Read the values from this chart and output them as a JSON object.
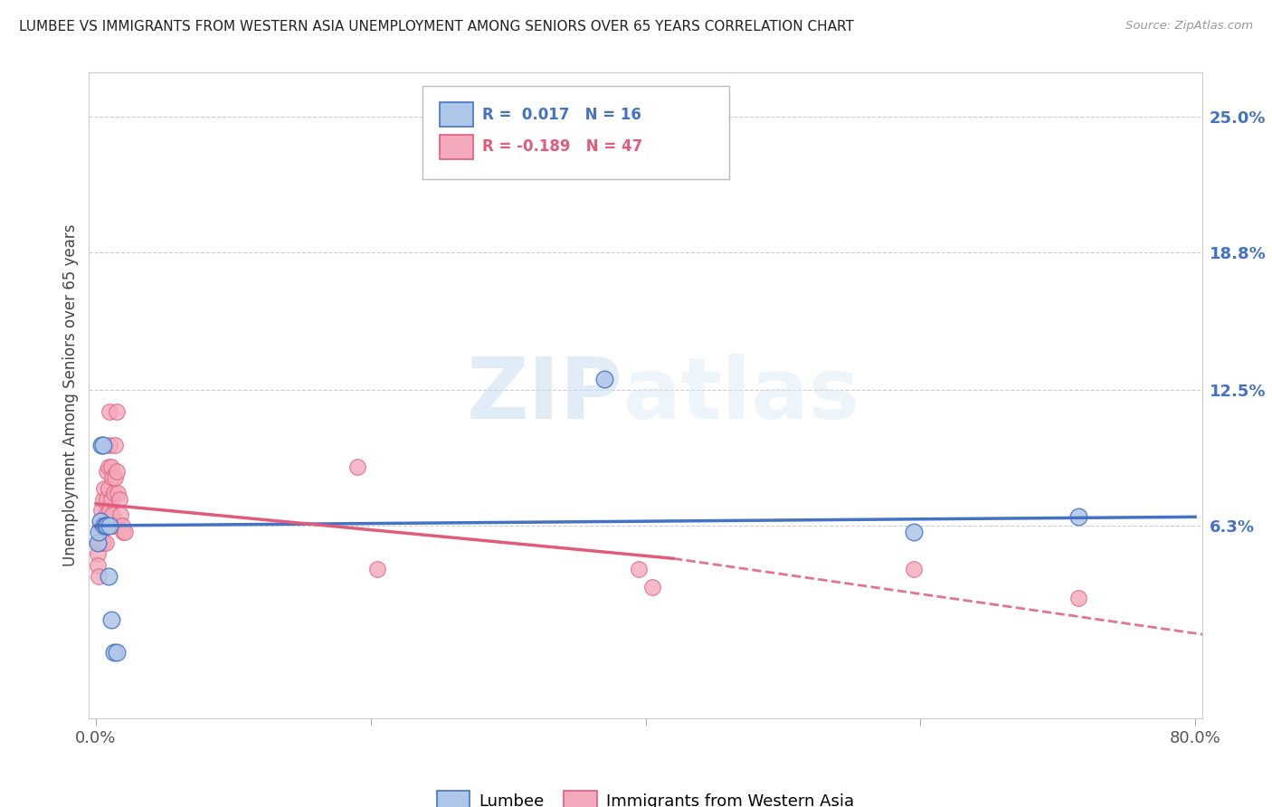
{
  "title": "LUMBEE VS IMMIGRANTS FROM WESTERN ASIA UNEMPLOYMENT AMONG SENIORS OVER 65 YEARS CORRELATION CHART",
  "source": "Source: ZipAtlas.com",
  "ylabel": "Unemployment Among Seniors over 65 years",
  "ytick_labels": [
    "6.3%",
    "12.5%",
    "18.8%",
    "25.0%"
  ],
  "ytick_values": [
    0.063,
    0.125,
    0.188,
    0.25
  ],
  "xlim": [
    -0.005,
    0.805
  ],
  "ylim": [
    -0.025,
    0.27
  ],
  "watermark_zip": "ZIP",
  "watermark_atlas": "atlas",
  "lumbee_color": "#aec6e8",
  "immigrant_color": "#f4a8bc",
  "lumbee_line_color": "#4472C4",
  "immigrant_line_color": "#E05C7A",
  "legend_lumbee": "Lumbee",
  "legend_immigrant": "Immigrants from Western Asia",
  "lumbee_R": 0.017,
  "lumbee_N": 16,
  "immigrant_R": -0.189,
  "immigrant_N": 47,
  "lumbee_trend_y0": 0.063,
  "lumbee_trend_y1": 0.067,
  "immigrant_trend_y0": 0.073,
  "immigrant_trend_y1_solid": 0.048,
  "immigrant_solid_split": 0.42,
  "immigrant_trend_y1_end": 0.012,
  "lumbee_x": [
    0.001,
    0.002,
    0.003,
    0.004,
    0.005,
    0.006,
    0.007,
    0.008,
    0.009,
    0.01,
    0.011,
    0.013,
    0.015,
    0.37,
    0.595,
    0.715
  ],
  "lumbee_y": [
    0.055,
    0.06,
    0.065,
    0.1,
    0.1,
    0.063,
    0.063,
    0.063,
    0.04,
    0.063,
    0.02,
    0.005,
    0.005,
    0.13,
    0.06,
    0.067
  ],
  "immigrant_x": [
    0.001,
    0.001,
    0.002,
    0.002,
    0.003,
    0.003,
    0.004,
    0.004,
    0.005,
    0.005,
    0.005,
    0.006,
    0.006,
    0.007,
    0.007,
    0.007,
    0.008,
    0.008,
    0.009,
    0.009,
    0.009,
    0.01,
    0.01,
    0.01,
    0.011,
    0.011,
    0.012,
    0.012,
    0.013,
    0.013,
    0.014,
    0.014,
    0.015,
    0.015,
    0.016,
    0.016,
    0.017,
    0.018,
    0.019,
    0.02,
    0.021,
    0.19,
    0.205,
    0.395,
    0.405,
    0.595,
    0.715
  ],
  "immigrant_y": [
    0.05,
    0.045,
    0.055,
    0.04,
    0.063,
    0.055,
    0.07,
    0.06,
    0.063,
    0.075,
    0.055,
    0.063,
    0.08,
    0.068,
    0.063,
    0.055,
    0.075,
    0.088,
    0.09,
    0.08,
    0.063,
    0.115,
    0.1,
    0.07,
    0.09,
    0.075,
    0.085,
    0.068,
    0.078,
    0.063,
    0.1,
    0.085,
    0.115,
    0.088,
    0.078,
    0.063,
    0.075,
    0.068,
    0.063,
    0.06,
    0.06,
    0.09,
    0.043,
    0.043,
    0.035,
    0.043,
    0.03
  ]
}
